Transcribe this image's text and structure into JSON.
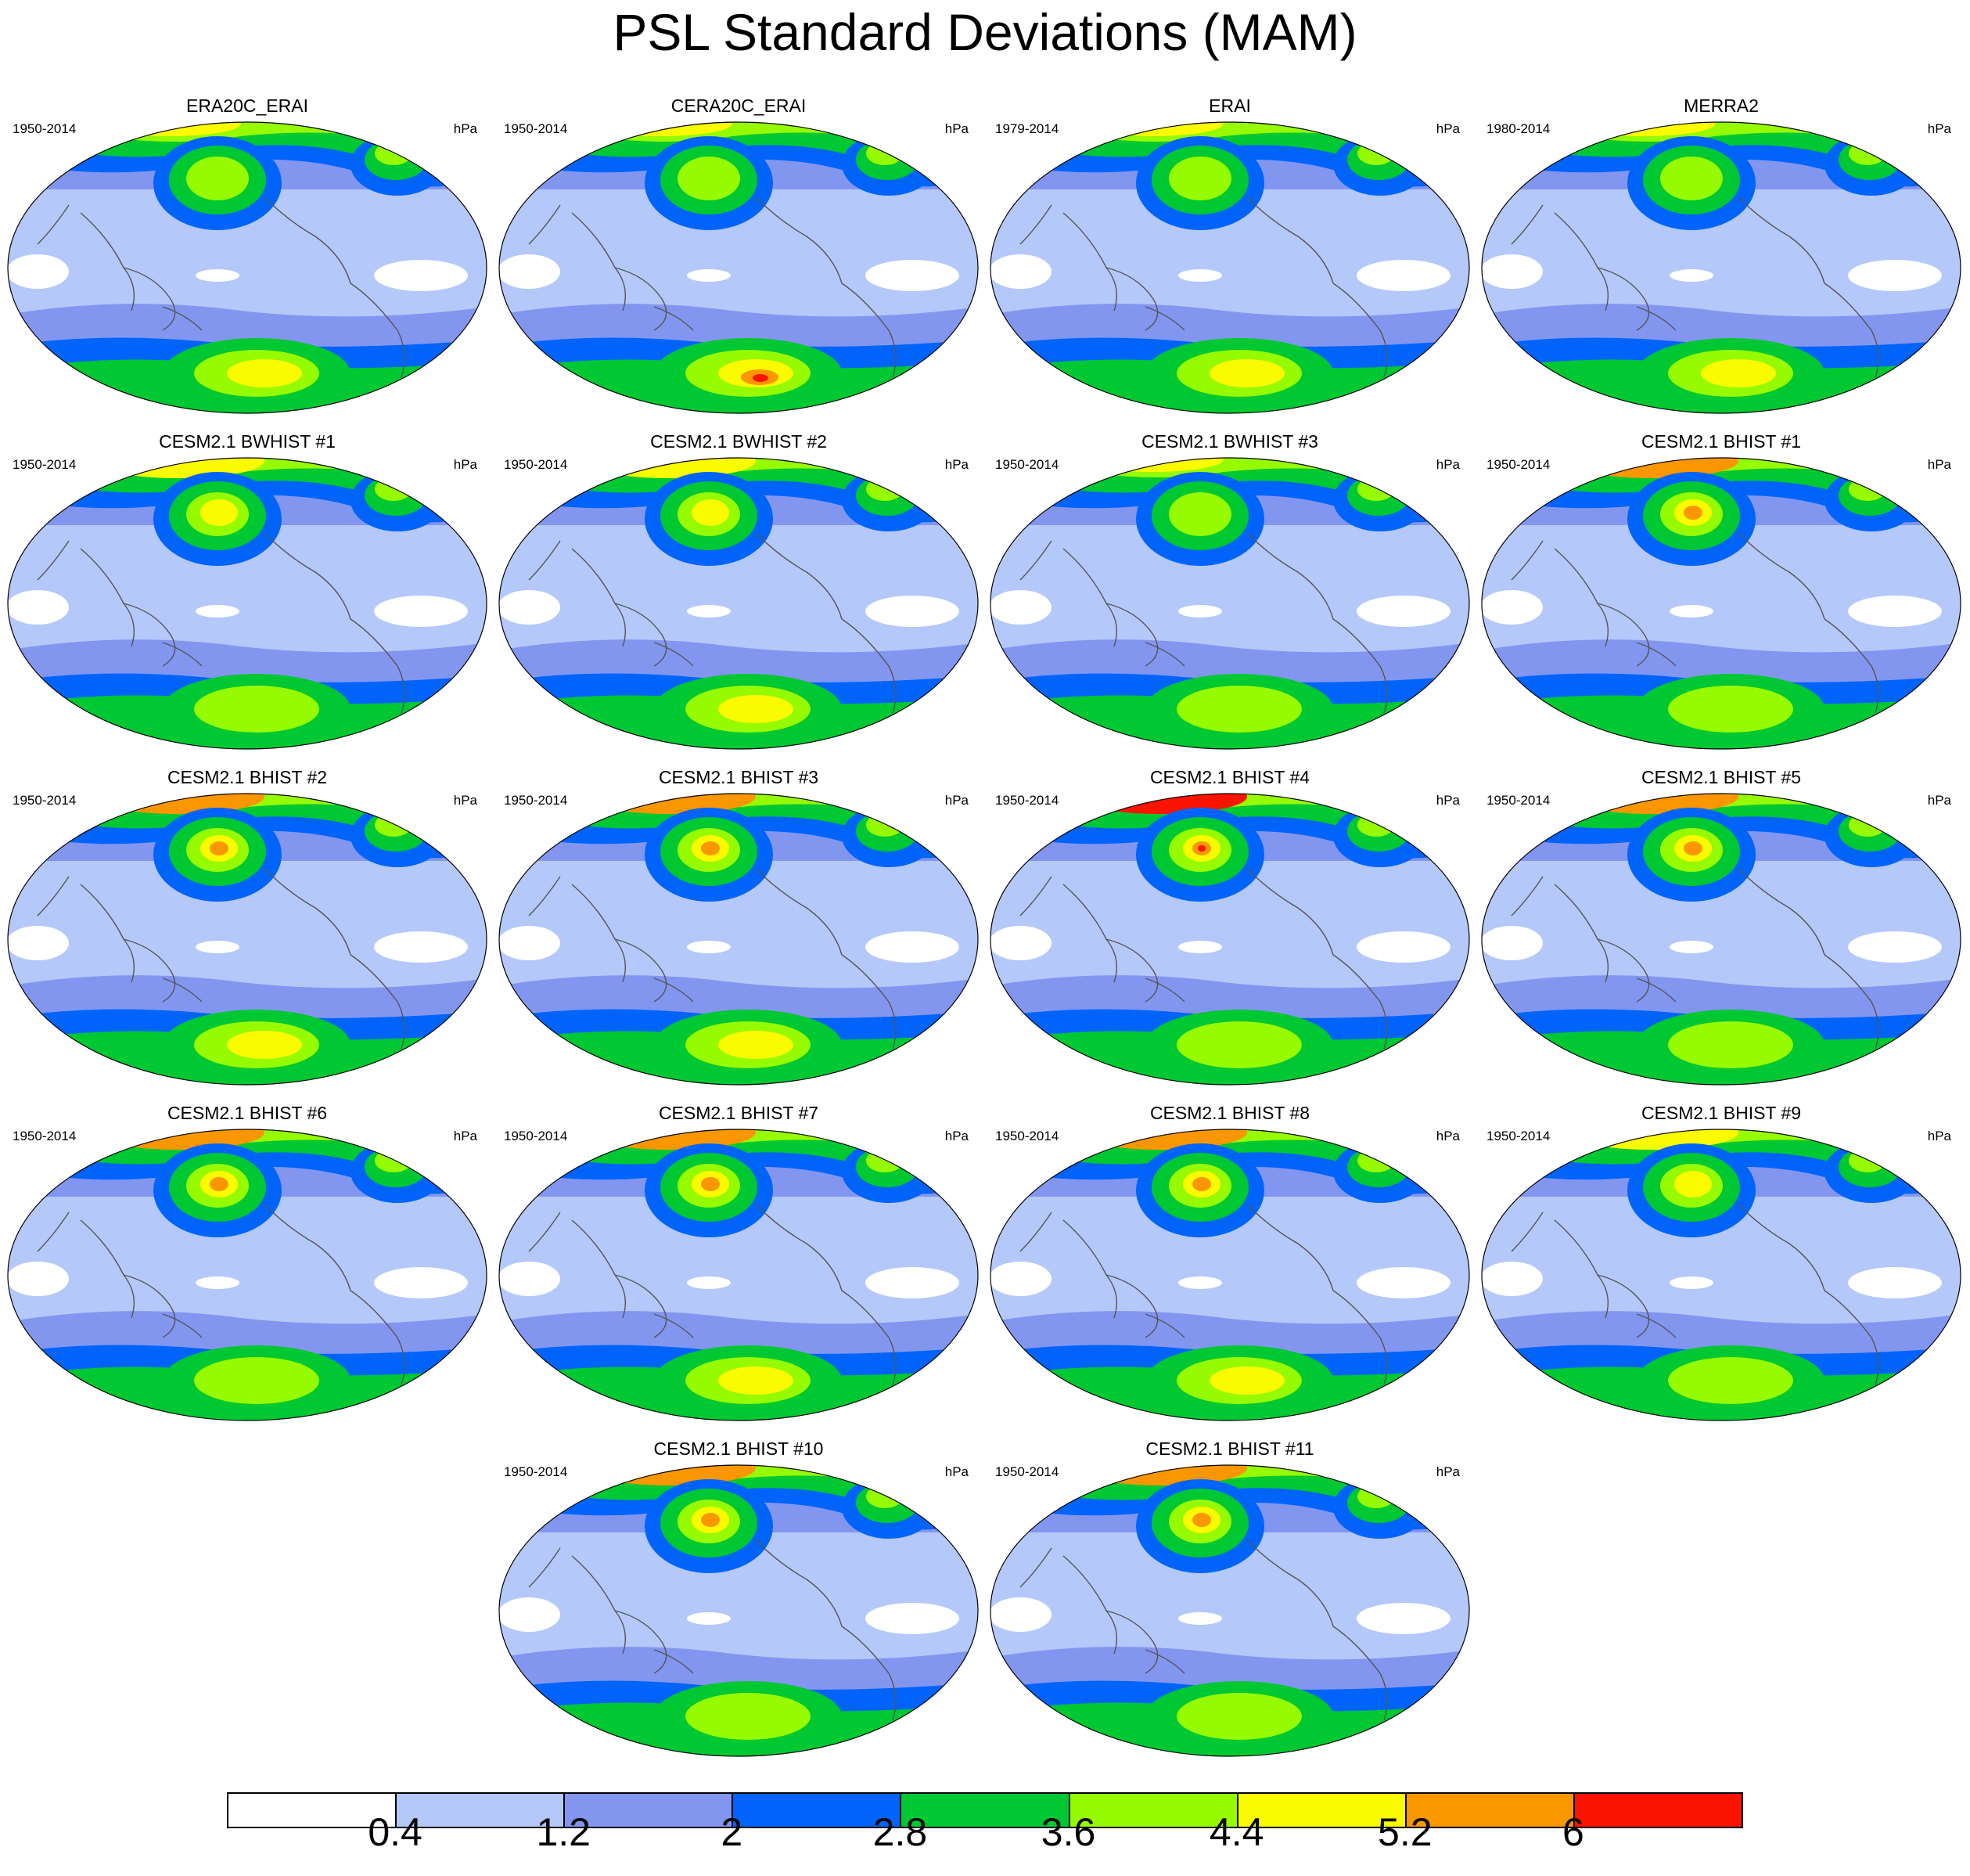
{
  "title": "PSL Standard Deviations (MAM)",
  "unit": "hPa",
  "colorbar": {
    "levels": [
      "0.4",
      "1.2",
      "2",
      "2.8",
      "3.6",
      "4.4",
      "5.2",
      "6"
    ],
    "colors": [
      "#ffffff",
      "#b4c8fa",
      "#8296f0",
      "#0064fa",
      "#00c832",
      "#96fa00",
      "#fafa00",
      "#fa9600",
      "#fa1400"
    ]
  },
  "panels": [
    {
      "title": "ERA20C_ERAI",
      "period": "1950-2014",
      "nh": 3,
      "sh": 3
    },
    {
      "title": "CERA20C_ERAI",
      "period": "1950-2014",
      "nh": 3,
      "sh": 4
    },
    {
      "title": "ERAI",
      "period": "1979-2014",
      "nh": 3,
      "sh": 3
    },
    {
      "title": "MERRA2",
      "period": "1980-2014",
      "nh": 3,
      "sh": 3
    },
    {
      "title": "CESM2.1 BWHIST #1",
      "period": "1950-2014",
      "nh": 4,
      "sh": 2
    },
    {
      "title": "CESM2.1 BWHIST #2",
      "period": "1950-2014",
      "nh": 4,
      "sh": 3
    },
    {
      "title": "CESM2.1 BWHIST #3",
      "period": "1950-2014",
      "nh": 3,
      "sh": 2
    },
    {
      "title": "CESM2.1 BHIST #1",
      "period": "1950-2014",
      "nh": 5,
      "sh": 2
    },
    {
      "title": "CESM2.1 BHIST #2",
      "period": "1950-2014",
      "nh": 5,
      "sh": 3
    },
    {
      "title": "CESM2.1 BHIST #3",
      "period": "1950-2014",
      "nh": 5,
      "sh": 3
    },
    {
      "title": "CESM2.1 BHIST #4",
      "period": "1950-2014",
      "nh": 6,
      "sh": 2
    },
    {
      "title": "CESM2.1 BHIST #5",
      "period": "1950-2014",
      "nh": 5,
      "sh": 2
    },
    {
      "title": "CESM2.1 BHIST #6",
      "period": "1950-2014",
      "nh": 5,
      "sh": 2
    },
    {
      "title": "CESM2.1 BHIST #7",
      "period": "1950-2014",
      "nh": 5,
      "sh": 3
    },
    {
      "title": "CESM2.1 BHIST #8",
      "period": "1950-2014",
      "nh": 5,
      "sh": 3
    },
    {
      "title": "CESM2.1 BHIST #9",
      "period": "1950-2014",
      "nh": 4,
      "sh": 2
    },
    {
      "title": "CESM2.1 BHIST #10",
      "period": "1950-2014",
      "nh": 5,
      "sh": 2
    },
    {
      "title": "CESM2.1 BHIST #11",
      "period": "1950-2014",
      "nh": 5,
      "sh": 2
    }
  ]
}
